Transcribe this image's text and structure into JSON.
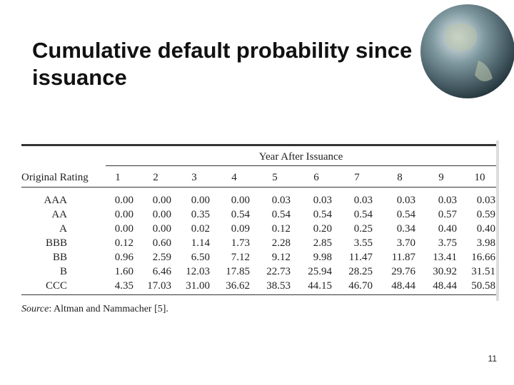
{
  "title": "Cumulative default probability since issuance",
  "table": {
    "group_header": "Year After Issuance",
    "row_header": "Original Rating",
    "columns": [
      "1",
      "2",
      "3",
      "4",
      "5",
      "6",
      "7",
      "8",
      "9",
      "10"
    ],
    "rows": [
      {
        "rating": "AAA",
        "values": [
          "0.00",
          "0.00",
          "0.00",
          "0.00",
          "0.03",
          "0.03",
          "0.03",
          "0.03",
          "0.03",
          "0.03"
        ]
      },
      {
        "rating": "AA",
        "values": [
          "0.00",
          "0.00",
          "0.35",
          "0.54",
          "0.54",
          "0.54",
          "0.54",
          "0.54",
          "0.57",
          "0.59"
        ]
      },
      {
        "rating": "A",
        "values": [
          "0.00",
          "0.00",
          "0.02",
          "0.09",
          "0.12",
          "0.20",
          "0.25",
          "0.34",
          "0.40",
          "0.40"
        ]
      },
      {
        "rating": "BBB",
        "values": [
          "0.12",
          "0.60",
          "1.14",
          "1.73",
          "2.28",
          "2.85",
          "3.55",
          "3.70",
          "3.75",
          "3.98"
        ]
      },
      {
        "rating": "BB",
        "values": [
          "0.96",
          "2.59",
          "6.50",
          "7.12",
          "9.12",
          "9.98",
          "11.47",
          "11.87",
          "13.41",
          "16.66"
        ]
      },
      {
        "rating": "B",
        "values": [
          "1.60",
          "6.46",
          "12.03",
          "17.85",
          "22.73",
          "25.94",
          "28.25",
          "29.76",
          "30.92",
          "31.51"
        ]
      },
      {
        "rating": "CCC",
        "values": [
          "4.35",
          "17.03",
          "31.00",
          "36.62",
          "38.53",
          "44.15",
          "46.70",
          "48.44",
          "48.44",
          "50.58"
        ]
      }
    ],
    "source_label": "Source",
    "source_text": ": Altman and Nammacher [5]."
  },
  "page_number": "11"
}
